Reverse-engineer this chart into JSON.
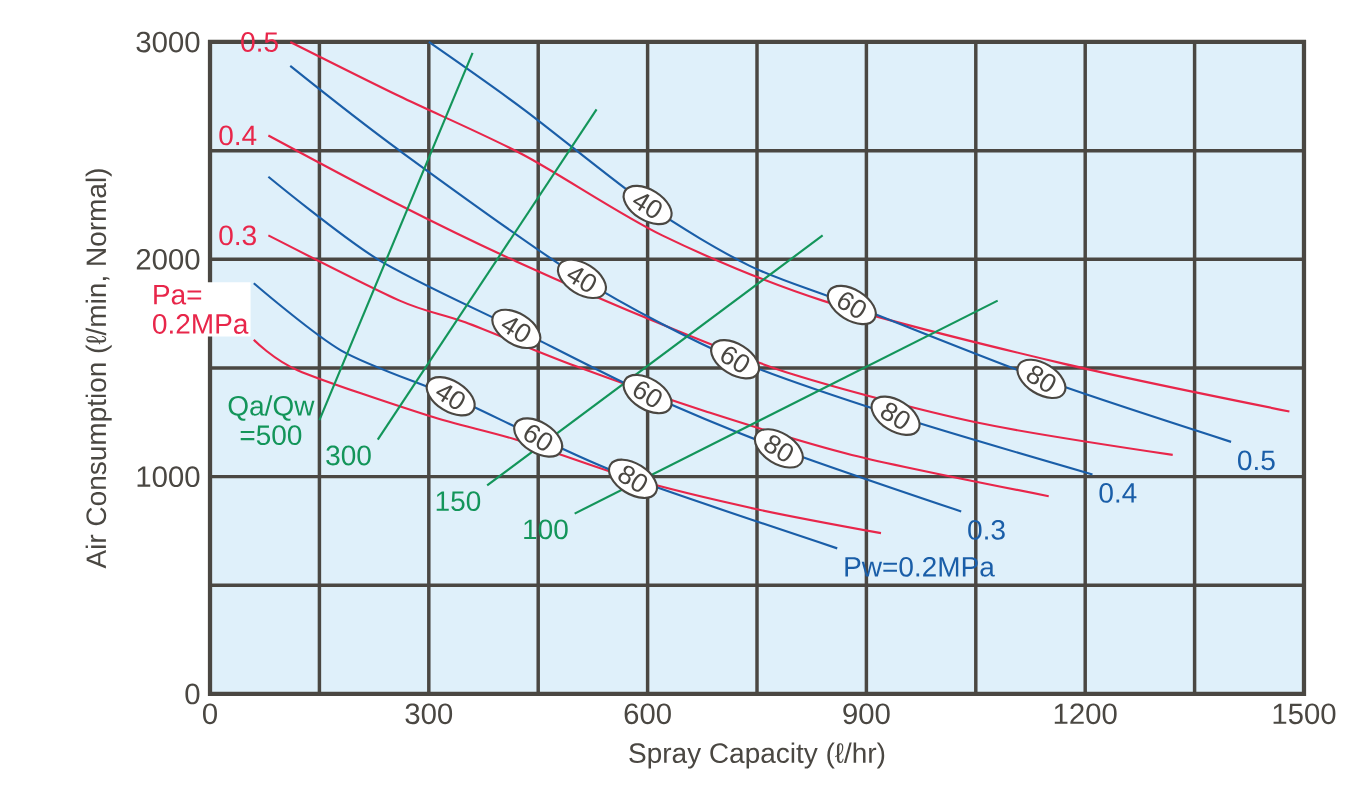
{
  "chart_data": {
    "type": "line",
    "xlabel": "Spray Capacity (ℓ/hr)",
    "ylabel": "Air Consumption (ℓ/min, Normal)",
    "xlim": [
      0,
      1500
    ],
    "ylim": [
      0,
      3000
    ],
    "xticks": [
      0,
      {
        "value": 150,
        "label": null
      },
      300,
      {
        "value": 450,
        "label": null
      },
      600,
      {
        "value": 750,
        "label": null
      },
      900,
      {
        "value": 1050,
        "label": null
      },
      1200,
      {
        "value": 1350,
        "label": null
      },
      1500
    ],
    "yticks": [
      0,
      {
        "value": 500,
        "label": null
      },
      1000,
      {
        "value": 1500,
        "label": null
      },
      2000,
      {
        "value": 2500,
        "label": null
      },
      3000
    ],
    "grid": true,
    "marker": "none",
    "line_style": "solid",
    "series": [
      {
        "name": "0.5",
        "color": "#e8264a",
        "x": [
          110,
          260,
          430,
          620,
          840,
          1170,
          1480
        ],
        "values": [
          3000,
          2750,
          2480,
          2110,
          1810,
          1520,
          1300
        ]
      },
      {
        "name": "0.4",
        "color": "#e8264a",
        "x": [
          80,
          260,
          420,
          620,
          800,
          1050,
          1320
        ],
        "values": [
          2570,
          2250,
          1990,
          1700,
          1470,
          1250,
          1100
        ]
      },
      {
        "name": "0.3",
        "color": "#e8264a",
        "x": [
          80,
          260,
          350,
          500,
          680,
          880,
          1150
        ],
        "values": [
          2110,
          1810,
          1710,
          1510,
          1300,
          1100,
          910
        ]
      },
      {
        "name": "Pa= 0.2MPa",
        "color": "#e8264a",
        "x": [
          60,
          120,
          300,
          420,
          580,
          750,
          920
        ],
        "values": [
          1630,
          1490,
          1280,
          1170,
          990,
          850,
          740
        ]
      },
      {
        "name": "0.5",
        "color": "#1a5ea8",
        "x": [
          300,
          430,
          600,
          740,
          880,
          1140,
          1400
        ],
        "values": [
          3000,
          2690,
          2250,
          1970,
          1790,
          1450,
          1160
        ]
      },
      {
        "name": "0.4",
        "color": "#1a5ea8",
        "x": [
          110,
          260,
          510,
          720,
          940,
          1210
        ],
        "values": [
          2890,
          2500,
          1910,
          1540,
          1280,
          1010
        ]
      },
      {
        "name": "0.3",
        "color": "#1a5ea8",
        "x": [
          80,
          230,
          420,
          600,
          780,
          1030
        ],
        "values": [
          2380,
          2000,
          1680,
          1380,
          1130,
          840
        ]
      },
      {
        "name": "Pw=0.2MPa",
        "color": "#1a5ea8",
        "x": [
          60,
          180,
          330,
          450,
          580,
          860
        ],
        "values": [
          1890,
          1580,
          1370,
          1180,
          990,
          670
        ]
      },
      {
        "name": "Qa/Qw =500",
        "color": "#13955a",
        "x": [
          150,
          360
        ],
        "values": [
          1260,
          2950
        ]
      },
      {
        "name": "300",
        "color": "#13955a",
        "x": [
          230,
          530
        ],
        "values": [
          1170,
          2690
        ]
      },
      {
        "name": "150",
        "color": "#13955a",
        "x": [
          380,
          840
        ],
        "values": [
          960,
          2110
        ]
      },
      {
        "name": "100",
        "color": "#13955a",
        "x": [
          500,
          1080
        ],
        "values": [
          830,
          1810
        ]
      }
    ],
    "annotations": [
      {
        "text": "40",
        "x": 600,
        "y": 2250
      },
      {
        "text": "60",
        "x": 880,
        "y": 1790
      },
      {
        "text": "80",
        "x": 1140,
        "y": 1450
      },
      {
        "text": "40",
        "x": 510,
        "y": 1910
      },
      {
        "text": "60",
        "x": 720,
        "y": 1540
      },
      {
        "text": "80",
        "x": 940,
        "y": 1280
      },
      {
        "text": "40",
        "x": 420,
        "y": 1680
      },
      {
        "text": "60",
        "x": 600,
        "y": 1380
      },
      {
        "text": "80",
        "x": 780,
        "y": 1130
      },
      {
        "text": "40",
        "x": 330,
        "y": 1370
      },
      {
        "text": "60",
        "x": 450,
        "y": 1180
      },
      {
        "text": "80",
        "x": 580,
        "y": 990
      }
    ]
  }
}
